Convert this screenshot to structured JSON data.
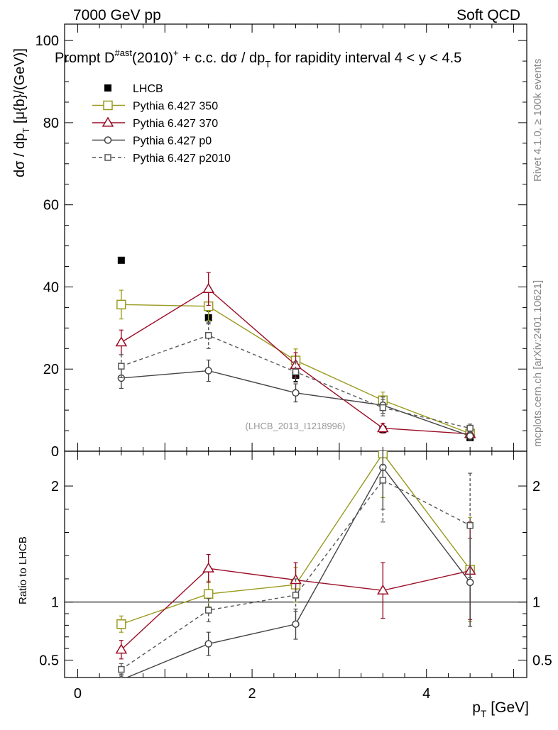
{
  "header": {
    "left": "7000 GeV pp",
    "right": "Soft QCD"
  },
  "side_labels": {
    "rivet": "Rivet 4.1.0, ≥ 100k events",
    "mcplots": "mcplots.cern.ch [arXiv:2401.10621]"
  },
  "chart_data": [
    {
      "type": "line",
      "panel": "main",
      "title": {
        "prefix": "Prompt D",
        "sup1": "#ast",
        "mid": "(2010)",
        "sup2": "+",
        "suffix": " + c.c.  dσ / dp",
        "sub": "T",
        "tail": " for rapidity interval 4 < y < 4.5"
      },
      "ylabel": {
        "main": "dσ / dp",
        "sub": "T",
        "tail": " [μ{b}/(GeV)]"
      },
      "ylim": [
        0,
        104
      ],
      "yticks": [
        0,
        20,
        40,
        60,
        80,
        100
      ],
      "xlim": [
        -0.15,
        5.15
      ],
      "watermark": "(LHCB_2013_I1218996)",
      "x": [
        0.5,
        1.5,
        2.5,
        3.5,
        4.5
      ],
      "series": [
        {
          "name": "LHCB",
          "values": [
            46.5,
            32.5,
            18.5,
            5.3,
            3.3
          ],
          "errors": [
            0.5,
            1.5,
            1.5,
            0.8,
            0.5
          ],
          "color": "#000000",
          "marker": "filled-square",
          "line": "none"
        },
        {
          "name": "Pythia 6.427 350",
          "values": [
            35.7,
            35.3,
            22.1,
            12.4,
            4.3
          ],
          "errors": [
            3.5,
            3.5,
            2.8,
            2.0,
            1.0
          ],
          "color": "#9a9a1f",
          "marker": "open-square",
          "line": "solid"
        },
        {
          "name": "Pythia 6.427 370",
          "values": [
            26.5,
            39.5,
            21.0,
            5.6,
            4.2
          ],
          "errors": [
            3.0,
            4.0,
            3.0,
            1.2,
            1.2
          ],
          "color": "#9b0d27",
          "marker": "open-triangle",
          "line": "solid"
        },
        {
          "name": "Pythia 6.427 p0",
          "values": [
            17.8,
            19.6,
            14.2,
            11.2,
            3.7
          ],
          "errors": [
            2.5,
            2.6,
            2.2,
            2.0,
            1.0
          ],
          "color": "#444444",
          "marker": "open-circle",
          "line": "solid"
        },
        {
          "name": "Pythia 6.427 p2010",
          "values": [
            20.7,
            28.2,
            19.3,
            10.6,
            5.6
          ],
          "errors": [
            2.8,
            3.2,
            2.5,
            2.0,
            1.0
          ],
          "color": "#555555",
          "marker": "open-square-small",
          "line": "dashed"
        }
      ]
    },
    {
      "type": "line",
      "panel": "ratio",
      "ylabel": "Ratio to LHCB",
      "xlabel": {
        "main": "p",
        "sub": "T",
        "tail": " [GeV]"
      },
      "ylim": [
        0.35,
        2.3
      ],
      "yticks": [
        0.5,
        1,
        2
      ],
      "ytick_labels": [
        "0.5",
        "1",
        "2"
      ],
      "xlim": [
        -0.15,
        5.15
      ],
      "xticks": [
        0,
        2,
        4
      ],
      "reference_line": 1,
      "x": [
        0.5,
        1.5,
        2.5,
        3.5,
        4.5
      ],
      "series": [
        {
          "name": "Pythia 6.427 350",
          "values": [
            0.81,
            1.07,
            1.15,
            2.28,
            1.28
          ],
          "errors": [
            0.07,
            0.11,
            0.15,
            0.38,
            0.45
          ],
          "color": "#9a9a1f",
          "marker": "open-square"
        },
        {
          "name": "Pythia 6.427 370",
          "values": [
            0.59,
            1.29,
            1.19,
            1.1,
            1.27
          ],
          "errors": [
            0.08,
            0.12,
            0.15,
            0.24,
            0.42
          ],
          "color": "#9b0d27",
          "marker": "open-triangle"
        },
        {
          "name": "Pythia 6.427 p0",
          "values": [
            0.33,
            0.64,
            0.81,
            2.16,
            1.17
          ],
          "errors": [
            0.05,
            0.1,
            0.13,
            0.36,
            0.38
          ],
          "color": "#444444",
          "marker": "open-circle"
        },
        {
          "name": "Pythia 6.427 p2010",
          "values": [
            0.42,
            0.93,
            1.06,
            2.05,
            1.66
          ],
          "errors": [
            0.05,
            0.1,
            0.14,
            0.36,
            0.45
          ],
          "color": "#555555",
          "marker": "open-square-small",
          "line": "dashed"
        }
      ]
    }
  ]
}
